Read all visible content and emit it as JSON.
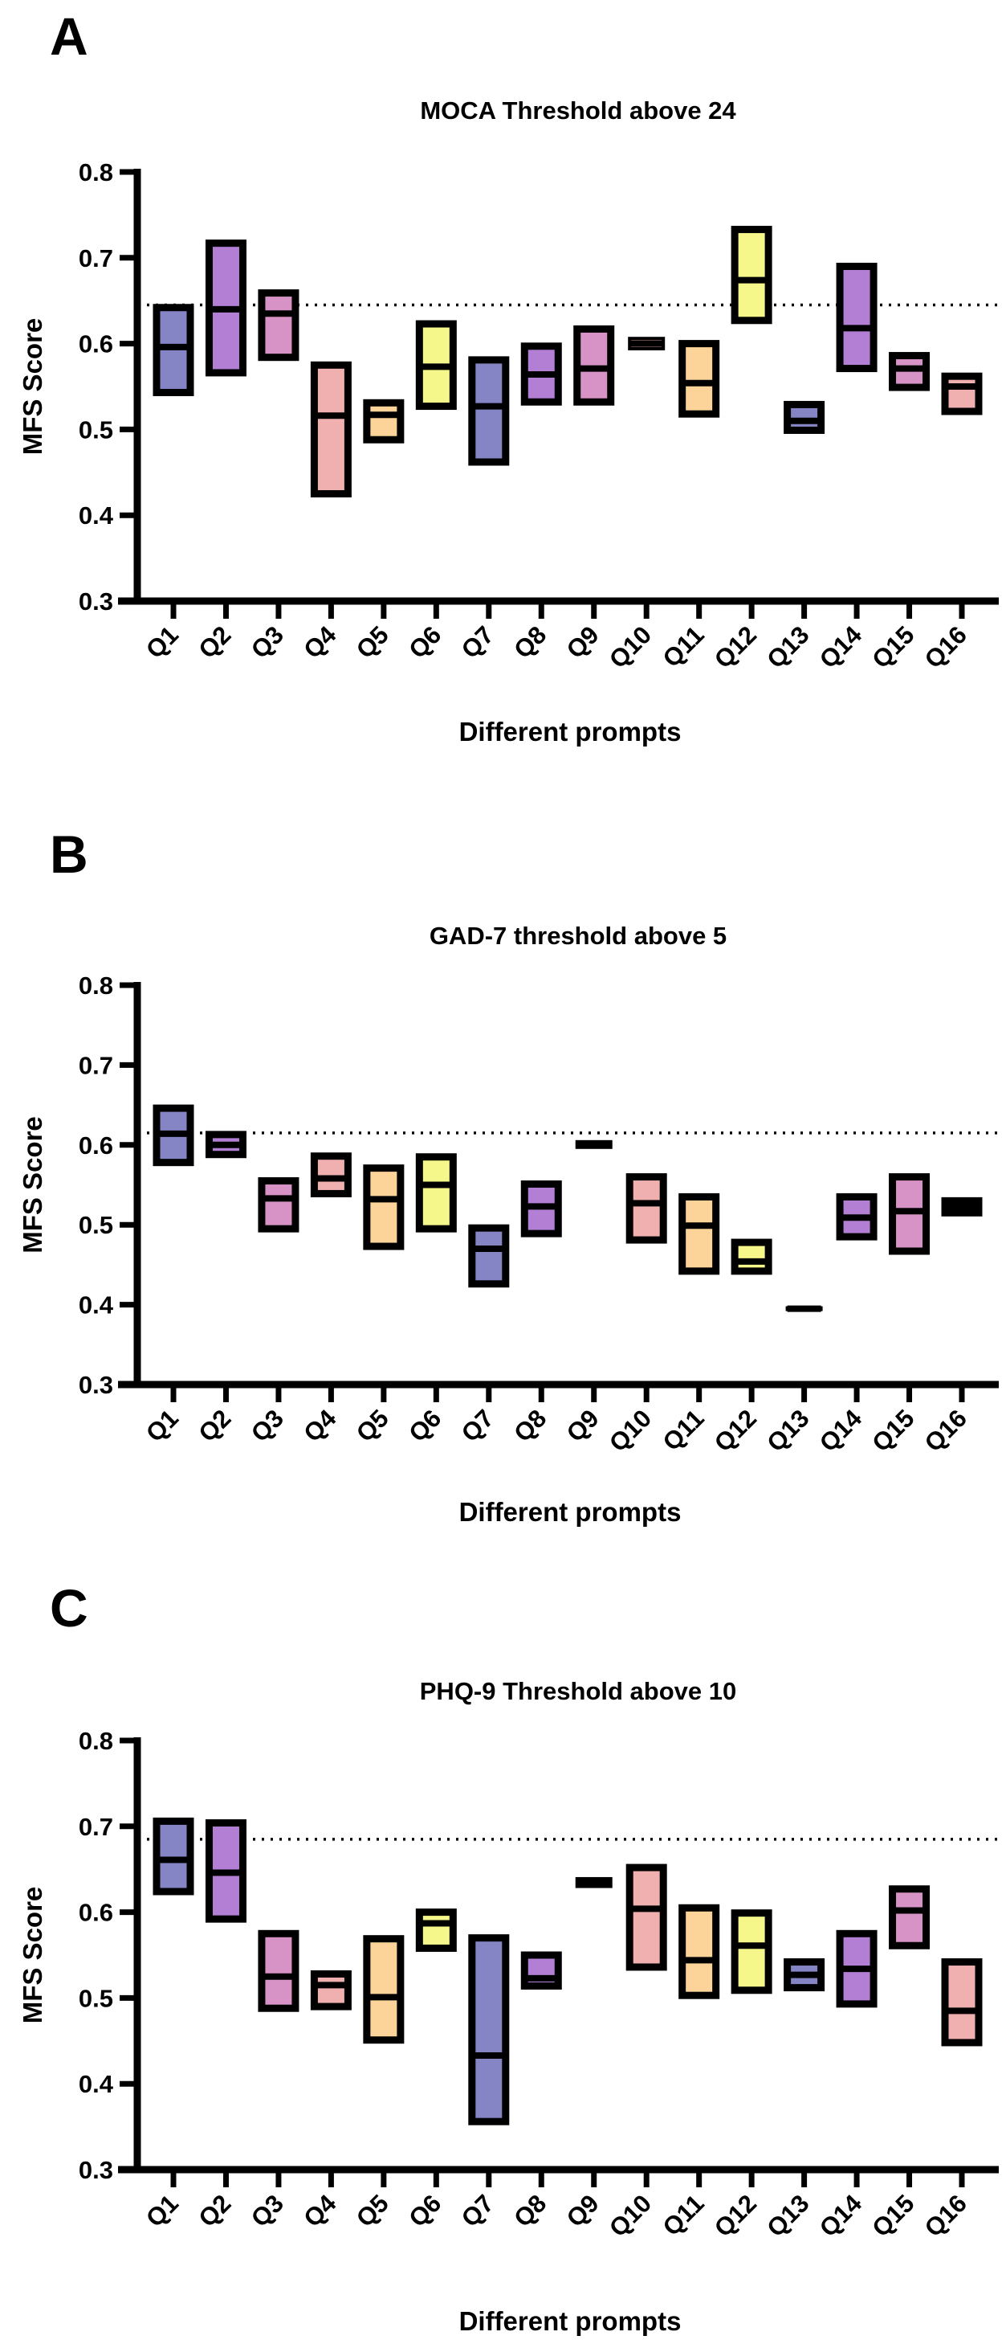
{
  "colors": [
    "#8585c5",
    "#b27fd4",
    "#d893c6",
    "#f0b0b0",
    "#fcd49a",
    "#f5f78b"
  ],
  "chart_data": [
    {
      "type": "floating-bar",
      "panel_label": "A",
      "title": "MOCA Threshold above 24",
      "xlabel": "Different prompts",
      "ylabel": "MFS Score",
      "ylim": [
        0.3,
        0.8
      ],
      "yticks": [
        "0.3",
        "0.4",
        "0.5",
        "0.6",
        "0.7",
        "0.8"
      ],
      "threshold": 0.645,
      "categories": [
        "Q1",
        "Q2",
        "Q3",
        "Q4",
        "Q5",
        "Q6",
        "Q7",
        "Q8",
        "Q9",
        "Q10",
        "Q11",
        "Q12",
        "Q13",
        "Q14",
        "Q15",
        "Q16"
      ],
      "min": [
        0.543,
        0.566,
        0.584,
        0.425,
        0.488,
        0.527,
        0.462,
        0.532,
        0.532,
        0.594,
        0.518,
        0.627,
        0.499,
        0.571,
        0.549,
        0.521
      ],
      "median": [
        0.596,
        0.64,
        0.635,
        0.516,
        0.517,
        0.573,
        0.527,
        0.564,
        0.571,
        0.6,
        0.554,
        0.674,
        0.51,
        0.618,
        0.571,
        0.55
      ],
      "max": [
        0.642,
        0.717,
        0.659,
        0.575,
        0.531,
        0.623,
        0.581,
        0.597,
        0.617,
        0.606,
        0.6,
        0.733,
        0.529,
        0.69,
        0.586,
        0.562
      ]
    },
    {
      "type": "floating-bar",
      "panel_label": "B",
      "title": "GAD-7 threshold above 5",
      "xlabel": "Different prompts",
      "ylabel": "MFS Score",
      "ylim": [
        0.3,
        0.8
      ],
      "yticks": [
        "0.3",
        "0.4",
        "0.5",
        "0.6",
        "0.7",
        "0.8"
      ],
      "threshold": 0.615,
      "categories": [
        "Q1",
        "Q2",
        "Q3",
        "Q4",
        "Q5",
        "Q6",
        "Q7",
        "Q8",
        "Q9",
        "Q10",
        "Q11",
        "Q12",
        "Q13",
        "Q14",
        "Q15",
        "Q16"
      ],
      "min": [
        0.578,
        0.588,
        0.495,
        0.539,
        0.473,
        0.495,
        0.426,
        0.489,
        0.597,
        0.481,
        0.442,
        0.442,
        0.394,
        0.485,
        0.467,
        0.515
      ],
      "median": [
        0.614,
        0.6,
        0.533,
        0.558,
        0.532,
        0.55,
        0.47,
        0.523,
        0.6,
        0.527,
        0.499,
        0.454,
        0.395,
        0.509,
        0.517,
        0.522
      ],
      "max": [
        0.646,
        0.613,
        0.555,
        0.586,
        0.571,
        0.585,
        0.496,
        0.551,
        0.604,
        0.56,
        0.535,
        0.478,
        0.396,
        0.535,
        0.56,
        0.53
      ]
    },
    {
      "type": "floating-bar",
      "panel_label": "C",
      "title": "PHQ-9 Threshold above 10",
      "xlabel": "Different prompts",
      "ylabel": "MFS Score",
      "ylim": [
        0.3,
        0.8
      ],
      "yticks": [
        "0.3",
        "0.4",
        "0.5",
        "0.6",
        "0.7",
        "0.8"
      ],
      "threshold": 0.685,
      "categories": [
        "Q1",
        "Q2",
        "Q3",
        "Q4",
        "Q5",
        "Q6",
        "Q7",
        "Q8",
        "Q9",
        "Q10",
        "Q11",
        "Q12",
        "Q13",
        "Q14",
        "Q15",
        "Q16"
      ],
      "min": [
        0.624,
        0.592,
        0.488,
        0.49,
        0.451,
        0.558,
        0.356,
        0.514,
        0.63,
        0.536,
        0.503,
        0.509,
        0.512,
        0.493,
        0.561,
        0.448
      ],
      "median": [
        0.661,
        0.646,
        0.525,
        0.515,
        0.501,
        0.587,
        0.433,
        0.523,
        0.635,
        0.604,
        0.544,
        0.561,
        0.527,
        0.534,
        0.602,
        0.485
      ],
      "max": [
        0.706,
        0.704,
        0.575,
        0.528,
        0.569,
        0.6,
        0.57,
        0.55,
        0.639,
        0.652,
        0.605,
        0.599,
        0.542,
        0.575,
        0.627,
        0.542
      ]
    }
  ]
}
